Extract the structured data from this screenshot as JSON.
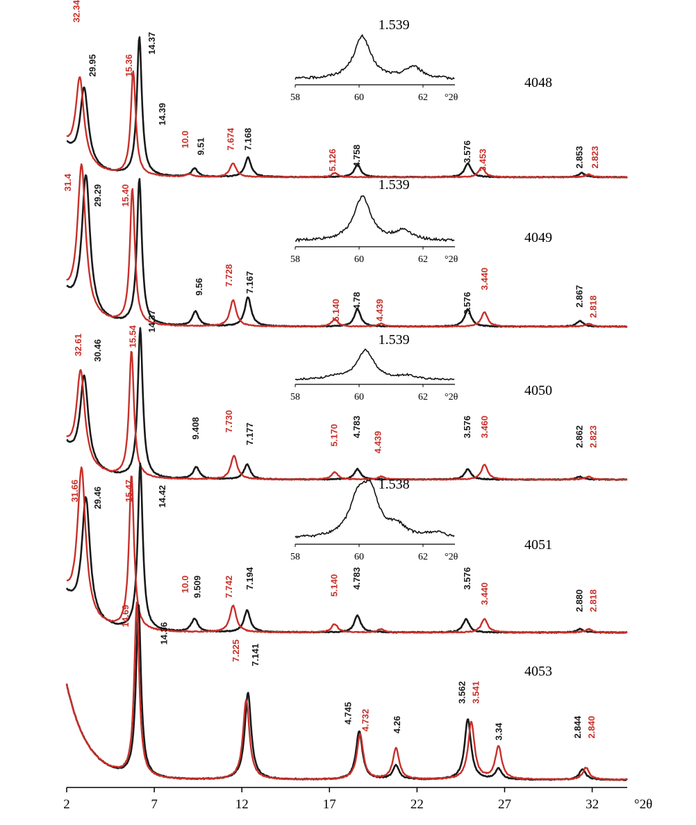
{
  "colors": {
    "untreated": "#1a1a1a",
    "treated": "#c8302a"
  },
  "chart_data": {
    "type": "line",
    "x_axis": {
      "unit": "°2θ",
      "range": [
        2,
        34
      ],
      "ticks": [
        2,
        7,
        12,
        17,
        22,
        27,
        32
      ],
      "tick_labels": [
        "2",
        "7",
        "12",
        "17",
        "22",
        "27",
        "32"
      ]
    },
    "panels": [
      {
        "sample": "4048",
        "inset": {
          "peak_label": "1.539",
          "x_ticks": [
            "58",
            "60",
            "62"
          ],
          "x_unit": "°2θ",
          "peaks": [
            [
              60.1,
              1.0
            ],
            [
              61.7,
              0.28
            ]
          ]
        },
        "series": [
          {
            "color_key": "untreated",
            "peaks": [
              [
                3.0,
                0.55
              ],
              [
                6.15,
                1.0
              ],
              [
                9.3,
                0.06
              ],
              [
                12.35,
                0.14
              ],
              [
                18.6,
                0.09
              ],
              [
                24.9,
                0.1
              ],
              [
                31.4,
                0.03
              ]
            ]
          },
          {
            "color_key": "treated",
            "peaks": [
              [
                2.75,
                0.6
              ],
              [
                5.8,
                0.75
              ],
              [
                9.0,
                0.02
              ],
              [
                11.5,
                0.1
              ],
              [
                17.3,
                0.03
              ],
              [
                25.7,
                0.07
              ],
              [
                31.8,
                0.02
              ]
            ]
          }
        ],
        "labels": [
          {
            "text": "29.95",
            "x": 3.5,
            "color_key": "untreated"
          },
          {
            "text": "32.34",
            "x": 2.6,
            "color_key": "treated"
          },
          {
            "text": "15.36",
            "x": 5.6,
            "color_key": "treated"
          },
          {
            "text": "14.37",
            "x": 6.9,
            "color_key": "untreated"
          },
          {
            "text": "14.39",
            "x": 7.5,
            "color_key": "untreated"
          },
          {
            "text": "10.0",
            "x": 8.8,
            "color_key": "treated"
          },
          {
            "text": "9.51",
            "x": 9.7,
            "color_key": "untreated"
          },
          {
            "text": "7.674",
            "x": 11.4,
            "color_key": "treated"
          },
          {
            "text": "7.168",
            "x": 12.4,
            "color_key": "untreated"
          },
          {
            "text": "5.126",
            "x": 17.2,
            "color_key": "treated"
          },
          {
            "text": "4.758",
            "x": 18.6,
            "color_key": "untreated"
          },
          {
            "text": "3.576",
            "x": 24.9,
            "color_key": "untreated"
          },
          {
            "text": "3.453",
            "x": 25.8,
            "color_key": "treated"
          },
          {
            "text": "2.853",
            "x": 31.3,
            "color_key": "untreated"
          },
          {
            "text": "2.823",
            "x": 32.2,
            "color_key": "treated"
          }
        ]
      },
      {
        "sample": "4049",
        "inset": {
          "peak_label": "1.539",
          "x_ticks": [
            "58",
            "60",
            "62"
          ],
          "x_unit": "°2θ",
          "peaks": [
            [
              60.1,
              1.0
            ],
            [
              61.4,
              0.22
            ]
          ]
        },
        "series": [
          {
            "color_key": "untreated",
            "peaks": [
              [
                3.1,
                0.95
              ],
              [
                6.15,
                1.0
              ],
              [
                9.35,
                0.1
              ],
              [
                12.35,
                0.2
              ],
              [
                18.6,
                0.12
              ],
              [
                24.9,
                0.12
              ],
              [
                31.3,
                0.04
              ]
            ]
          },
          {
            "color_key": "treated",
            "peaks": [
              [
                2.85,
                1.0
              ],
              [
                5.75,
                0.93
              ],
              [
                11.5,
                0.18
              ],
              [
                17.3,
                0.05
              ],
              [
                19.95,
                0.02
              ],
              [
                25.85,
                0.1
              ],
              [
                31.8,
                0.02
              ]
            ]
          }
        ],
        "labels": [
          {
            "text": "31.4",
            "x": 2.1,
            "color_key": "treated"
          },
          {
            "text": "29.29",
            "x": 3.8,
            "color_key": "untreated"
          },
          {
            "text": "15.40",
            "x": 5.4,
            "color_key": "treated"
          },
          {
            "text": "9.56",
            "x": 9.6,
            "color_key": "untreated"
          },
          {
            "text": "7.728",
            "x": 11.3,
            "color_key": "treated"
          },
          {
            "text": "7.167",
            "x": 12.5,
            "color_key": "untreated"
          },
          {
            "text": "5.140",
            "x": 17.4,
            "color_key": "treated"
          },
          {
            "text": "4.78",
            "x": 18.6,
            "color_key": "untreated"
          },
          {
            "text": "4.439",
            "x": 19.9,
            "color_key": "treated"
          },
          {
            "text": "3.576",
            "x": 24.9,
            "color_key": "untreated"
          },
          {
            "text": "3.440",
            "x": 25.9,
            "color_key": "treated"
          },
          {
            "text": "2.867",
            "x": 31.3,
            "color_key": "untreated"
          },
          {
            "text": "2.818",
            "x": 32.1,
            "color_key": "treated"
          }
        ]
      },
      {
        "sample": "4050",
        "inset": {
          "peak_label": "1.539",
          "x_ticks": [
            "58",
            "60",
            "62"
          ],
          "x_unit": "°2θ",
          "peaks": [
            [
              60.2,
              1.0
            ],
            [
              61.5,
              0.12
            ],
            [
              59.2,
              0.08
            ]
          ]
        },
        "series": [
          {
            "color_key": "untreated",
            "peaks": [
              [
                3.0,
                0.6
              ],
              [
                6.2,
                1.0
              ],
              [
                9.4,
                0.08
              ],
              [
                12.3,
                0.1
              ],
              [
                18.6,
                0.07
              ],
              [
                24.9,
                0.07
              ],
              [
                31.3,
                0.02
              ]
            ]
          },
          {
            "color_key": "treated",
            "peaks": [
              [
                2.8,
                0.62
              ],
              [
                5.7,
                0.85
              ],
              [
                11.55,
                0.16
              ],
              [
                17.3,
                0.05
              ],
              [
                19.95,
                0.02
              ],
              [
                25.85,
                0.1
              ],
              [
                31.8,
                0.02
              ]
            ]
          }
        ],
        "labels": [
          {
            "text": "32.61",
            "x": 2.7,
            "color_key": "treated"
          },
          {
            "text": "30.46",
            "x": 3.8,
            "color_key": "untreated"
          },
          {
            "text": "15.54",
            "x": 5.8,
            "color_key": "treated"
          },
          {
            "text": "14.37",
            "x": 6.9,
            "color_key": "untreated"
          },
          {
            "text": "9.408",
            "x": 9.4,
            "color_key": "untreated"
          },
          {
            "text": "7.730",
            "x": 11.3,
            "color_key": "treated"
          },
          {
            "text": "7.177",
            "x": 12.5,
            "color_key": "untreated"
          },
          {
            "text": "5.170",
            "x": 17.3,
            "color_key": "treated"
          },
          {
            "text": "4.783",
            "x": 18.6,
            "color_key": "untreated"
          },
          {
            "text": "4.439",
            "x": 19.8,
            "color_key": "treated"
          },
          {
            "text": "3.576",
            "x": 24.9,
            "color_key": "untreated"
          },
          {
            "text": "3.460",
            "x": 25.9,
            "color_key": "treated"
          },
          {
            "text": "2.862",
            "x": 31.3,
            "color_key": "untreated"
          },
          {
            "text": "2.823",
            "x": 32.1,
            "color_key": "treated"
          }
        ]
      },
      {
        "sample": "4051",
        "inset": {
          "peak_label": "1.538",
          "x_ticks": [
            "58",
            "60",
            "62"
          ],
          "x_unit": "°2θ",
          "peaks": [
            [
              59.95,
              0.8
            ],
            [
              60.35,
              1.0
            ],
            [
              61.2,
              0.25
            ],
            [
              62.4,
              0.12
            ]
          ]
        },
        "series": [
          {
            "color_key": "untreated",
            "peaks": [
              [
                3.1,
                0.72
              ],
              [
                6.2,
                1.0
              ],
              [
                9.3,
                0.08
              ],
              [
                12.3,
                0.13
              ],
              [
                18.6,
                0.1
              ],
              [
                24.8,
                0.08
              ],
              [
                31.3,
                0.02
              ]
            ]
          },
          {
            "color_key": "treated",
            "peaks": [
              [
                2.85,
                0.88
              ],
              [
                5.7,
                0.93
              ],
              [
                11.5,
                0.16
              ],
              [
                17.3,
                0.05
              ],
              [
                19.95,
                0.02
              ],
              [
                25.85,
                0.08
              ],
              [
                31.8,
                0.02
              ]
            ]
          }
        ],
        "labels": [
          {
            "text": "31.66",
            "x": 2.5,
            "color_key": "treated"
          },
          {
            "text": "29.46",
            "x": 3.8,
            "color_key": "untreated"
          },
          {
            "text": "15.47",
            "x": 5.6,
            "color_key": "treated"
          },
          {
            "text": "14.42",
            "x": 7.5,
            "color_key": "untreated"
          },
          {
            "text": "10.0",
            "x": 8.8,
            "color_key": "treated"
          },
          {
            "text": "9.509",
            "x": 9.5,
            "color_key": "untreated"
          },
          {
            "text": "7.742",
            "x": 11.3,
            "color_key": "treated"
          },
          {
            "text": "7.194",
            "x": 12.5,
            "color_key": "untreated"
          },
          {
            "text": "5.140",
            "x": 17.3,
            "color_key": "treated"
          },
          {
            "text": "4.783",
            "x": 18.6,
            "color_key": "untreated"
          },
          {
            "text": "3.576",
            "x": 24.9,
            "color_key": "untreated"
          },
          {
            "text": "3.440",
            "x": 25.9,
            "color_key": "treated"
          },
          {
            "text": "2.880",
            "x": 31.3,
            "color_key": "untreated"
          },
          {
            "text": "2.818",
            "x": 32.1,
            "color_key": "treated"
          }
        ]
      },
      {
        "sample": "4053",
        "inset": null,
        "series": [
          {
            "color_key": "untreated",
            "peaks": [
              [
                6.1,
                1.0
              ],
              [
                12.35,
                0.5
              ],
              [
                18.7,
                0.28
              ],
              [
                20.8,
                0.08
              ],
              [
                24.9,
                0.35
              ],
              [
                26.65,
                0.06
              ],
              [
                31.45,
                0.06
              ]
            ]
          },
          {
            "color_key": "treated",
            "peaks": [
              [
                6.0,
                1.0
              ],
              [
                12.25,
                0.46
              ],
              [
                18.75,
                0.26
              ],
              [
                20.8,
                0.18
              ],
              [
                25.1,
                0.33
              ],
              [
                26.65,
                0.19
              ],
              [
                31.65,
                0.07
              ]
            ]
          }
        ],
        "labels": [
          {
            "text": "14.69",
            "x": 5.4,
            "color_key": "treated"
          },
          {
            "text": "14.36",
            "x": 7.6,
            "color_key": "untreated"
          },
          {
            "text": "7.225",
            "x": 11.7,
            "color_key": "treated"
          },
          {
            "text": "7.141",
            "x": 12.8,
            "color_key": "untreated"
          },
          {
            "text": "4.745",
            "x": 18.1,
            "color_key": "untreated"
          },
          {
            "text": "4.732",
            "x": 19.1,
            "color_key": "treated"
          },
          {
            "text": "4.26",
            "x": 20.9,
            "color_key": "untreated"
          },
          {
            "text": "3.562",
            "x": 24.6,
            "color_key": "untreated"
          },
          {
            "text": "3.541",
            "x": 25.4,
            "color_key": "treated"
          },
          {
            "text": "3.34",
            "x": 26.7,
            "color_key": "untreated"
          },
          {
            "text": "2.844",
            "x": 31.2,
            "color_key": "untreated"
          },
          {
            "text": "2.840",
            "x": 32.0,
            "color_key": "treated"
          }
        ]
      }
    ]
  }
}
